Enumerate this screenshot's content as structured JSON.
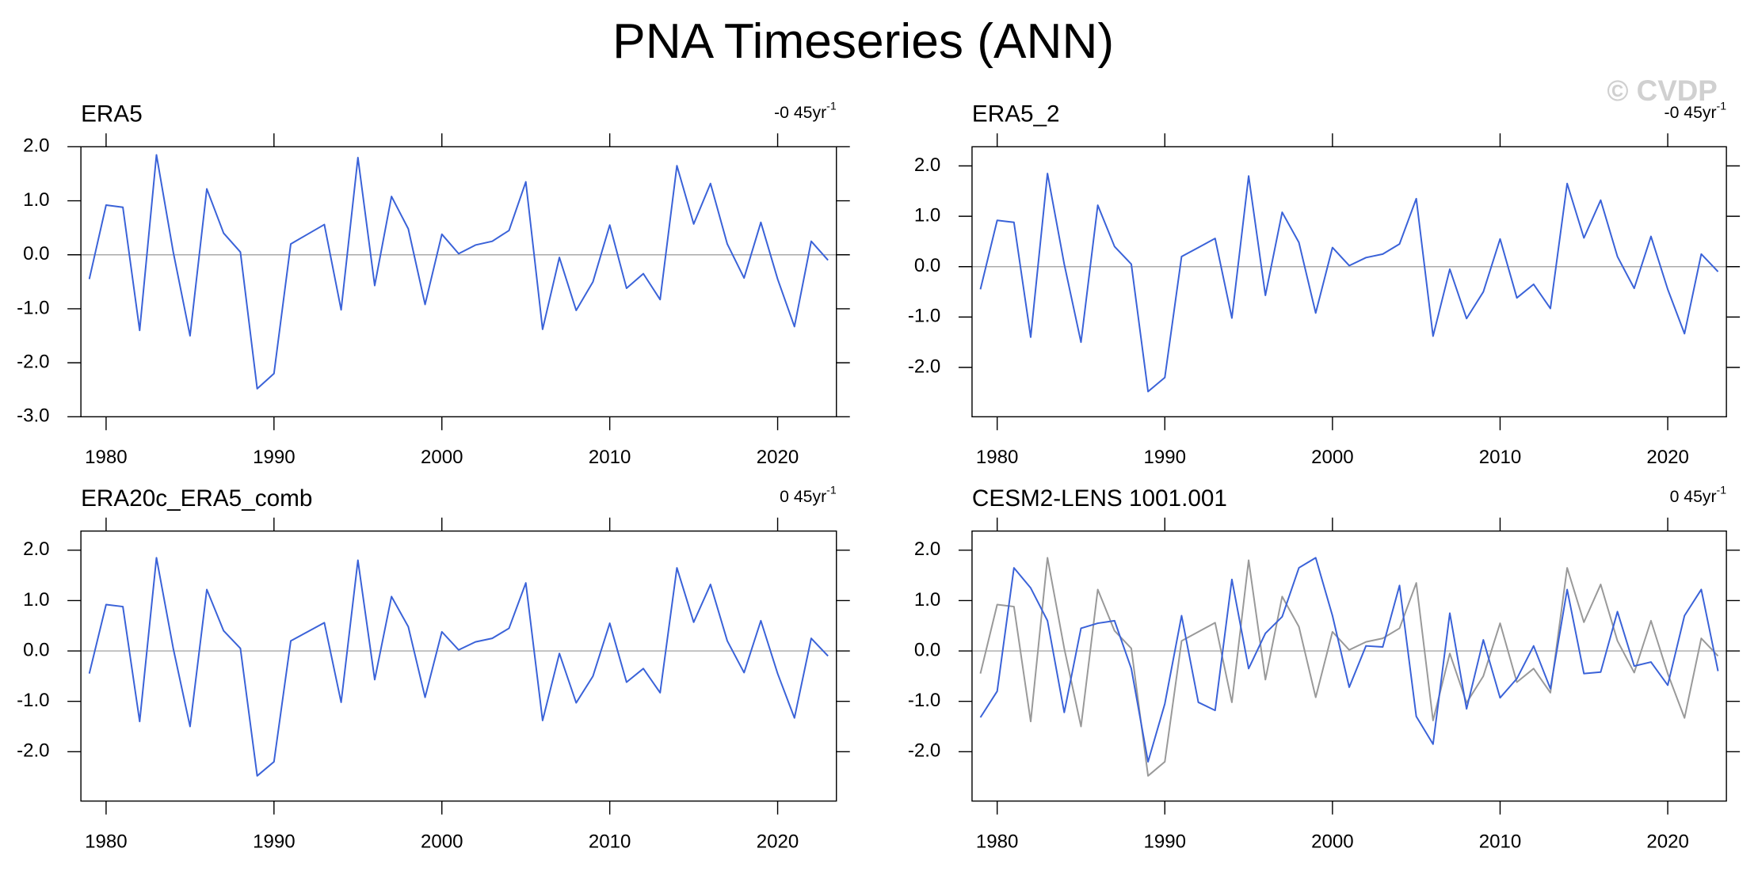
{
  "title": "PNA Timeseries (ANN)",
  "watermark": "© CVDP",
  "chart_data": [
    {
      "type": "line",
      "title": "ERA5",
      "trend": {
        "text": "-0 45yr",
        "superscript": "-1"
      },
      "x": [
        1979,
        1980,
        1981,
        1982,
        1983,
        1984,
        1985,
        1986,
        1987,
        1988,
        1989,
        1990,
        1991,
        1992,
        1993,
        1994,
        1995,
        1996,
        1997,
        1998,
        1999,
        2000,
        2001,
        2002,
        2003,
        2004,
        2005,
        2006,
        2007,
        2008,
        2009,
        2010,
        2011,
        2012,
        2013,
        2014,
        2015,
        2016,
        2017,
        2018,
        2019,
        2020,
        2021,
        2022,
        2023
      ],
      "series": [
        {
          "color": "#3a62d8",
          "values": [
            -0.45,
            0.92,
            0.88,
            -1.4,
            1.85,
            0.05,
            -1.5,
            1.22,
            0.4,
            0.05,
            -2.48,
            -2.2,
            0.2,
            0.38,
            0.56,
            -1.02,
            1.8,
            -0.57,
            1.08,
            0.48,
            -0.92,
            0.38,
            0.02,
            0.18,
            0.25,
            0.45,
            1.35,
            -1.38,
            -0.05,
            -1.03,
            -0.5,
            0.55,
            -0.62,
            -0.35,
            -0.83,
            1.65,
            0.57,
            1.32,
            0.2,
            -0.43,
            0.6,
            -0.45,
            -1.33,
            0.25,
            -0.1
          ]
        }
      ],
      "xlim": [
        1978.5,
        2023.5
      ],
      "xticks": [
        1980,
        1990,
        2000,
        2010,
        2020
      ],
      "ylim": [
        -3,
        2
      ],
      "yticks": [
        {
          "value": -3,
          "label": "-3.0"
        },
        {
          "value": -2,
          "label": "-2.0"
        },
        {
          "value": -1,
          "label": "-1.0"
        },
        {
          "value": 0,
          "label": "0.0"
        },
        {
          "value": 1,
          "label": "1.0"
        },
        {
          "value": 2,
          "label": "2.0"
        }
      ],
      "zero_line": true
    },
    {
      "type": "line",
      "title": "ERA5_2",
      "trend": {
        "text": "-0 45yr",
        "superscript": "-1"
      },
      "x": [
        1979,
        1980,
        1981,
        1982,
        1983,
        1984,
        1985,
        1986,
        1987,
        1988,
        1989,
        1990,
        1991,
        1992,
        1993,
        1994,
        1995,
        1996,
        1997,
        1998,
        1999,
        2000,
        2001,
        2002,
        2003,
        2004,
        2005,
        2006,
        2007,
        2008,
        2009,
        2010,
        2011,
        2012,
        2013,
        2014,
        2015,
        2016,
        2017,
        2018,
        2019,
        2020,
        2021,
        2022,
        2023
      ],
      "series": [
        {
          "color": "#3a62d8",
          "values": [
            -0.45,
            0.92,
            0.88,
            -1.4,
            1.85,
            0.05,
            -1.5,
            1.22,
            0.4,
            0.05,
            -2.48,
            -2.2,
            0.2,
            0.38,
            0.56,
            -1.02,
            1.8,
            -0.57,
            1.08,
            0.48,
            -0.92,
            0.38,
            0.02,
            0.18,
            0.25,
            0.45,
            1.35,
            -1.38,
            -0.05,
            -1.03,
            -0.5,
            0.55,
            -0.62,
            -0.35,
            -0.83,
            1.65,
            0.57,
            1.32,
            0.2,
            -0.43,
            0.6,
            -0.45,
            -1.33,
            0.25,
            -0.1
          ]
        }
      ],
      "xlim": [
        1978.5,
        2023.5
      ],
      "xticks": [
        1980,
        1990,
        2000,
        2010,
        2020
      ],
      "ylim": [
        -2.98,
        2.38
      ],
      "yticks": [
        {
          "value": -2,
          "label": "-2.0"
        },
        {
          "value": -1,
          "label": "-1.0"
        },
        {
          "value": 0,
          "label": "0.0"
        },
        {
          "value": 1,
          "label": "1.0"
        },
        {
          "value": 2,
          "label": "2.0"
        }
      ],
      "zero_line": true
    },
    {
      "type": "line",
      "title": "ERA20c_ERA5_comb",
      "trend": {
        "text": "0 45yr",
        "superscript": "-1"
      },
      "x": [
        1979,
        1980,
        1981,
        1982,
        1983,
        1984,
        1985,
        1986,
        1987,
        1988,
        1989,
        1990,
        1991,
        1992,
        1993,
        1994,
        1995,
        1996,
        1997,
        1998,
        1999,
        2000,
        2001,
        2002,
        2003,
        2004,
        2005,
        2006,
        2007,
        2008,
        2009,
        2010,
        2011,
        2012,
        2013,
        2014,
        2015,
        2016,
        2017,
        2018,
        2019,
        2020,
        2021,
        2022,
        2023
      ],
      "series": [
        {
          "color": "#3a62d8",
          "values": [
            -0.45,
            0.92,
            0.88,
            -1.4,
            1.85,
            0.05,
            -1.5,
            1.22,
            0.4,
            0.05,
            -2.48,
            -2.2,
            0.2,
            0.38,
            0.56,
            -1.02,
            1.8,
            -0.57,
            1.08,
            0.48,
            -0.92,
            0.38,
            0.02,
            0.18,
            0.25,
            0.45,
            1.35,
            -1.38,
            -0.05,
            -1.03,
            -0.5,
            0.55,
            -0.62,
            -0.35,
            -0.83,
            1.65,
            0.57,
            1.32,
            0.2,
            -0.43,
            0.6,
            -0.45,
            -1.33,
            0.25,
            -0.1
          ]
        }
      ],
      "xlim": [
        1978.5,
        2023.5
      ],
      "xticks": [
        1980,
        1990,
        2000,
        2010,
        2020
      ],
      "ylim": [
        -2.98,
        2.38
      ],
      "yticks": [
        {
          "value": -2,
          "label": "-2.0"
        },
        {
          "value": -1,
          "label": "-1.0"
        },
        {
          "value": 0,
          "label": "0.0"
        },
        {
          "value": 1,
          "label": "1.0"
        },
        {
          "value": 2,
          "label": "2.0"
        }
      ],
      "zero_line": true
    },
    {
      "type": "line",
      "title": "CESM2-LENS 1001.001",
      "trend": {
        "text": "0 45yr",
        "superscript": "-1"
      },
      "x": [
        1979,
        1980,
        1981,
        1982,
        1983,
        1984,
        1985,
        1986,
        1987,
        1988,
        1989,
        1990,
        1991,
        1992,
        1993,
        1994,
        1995,
        1996,
        1997,
        1998,
        1999,
        2000,
        2001,
        2002,
        2003,
        2004,
        2005,
        2006,
        2007,
        2008,
        2009,
        2010,
        2011,
        2012,
        2013,
        2014,
        2015,
        2016,
        2017,
        2018,
        2019,
        2020,
        2021,
        2022,
        2023
      ],
      "series": [
        {
          "color": "#999999",
          "values": [
            -0.45,
            0.92,
            0.88,
            -1.4,
            1.85,
            0.05,
            -1.5,
            1.22,
            0.4,
            0.05,
            -2.48,
            -2.2,
            0.2,
            0.38,
            0.56,
            -1.02,
            1.8,
            -0.57,
            1.08,
            0.48,
            -0.92,
            0.38,
            0.02,
            0.18,
            0.25,
            0.45,
            1.35,
            -1.38,
            -0.05,
            -1.03,
            -0.5,
            0.55,
            -0.62,
            -0.35,
            -0.83,
            1.65,
            0.57,
            1.32,
            0.2,
            -0.43,
            0.6,
            -0.45,
            -1.33,
            0.25,
            -0.1
          ]
        },
        {
          "color": "#3a62d8",
          "values": [
            -1.32,
            -0.8,
            1.65,
            1.25,
            0.6,
            -1.22,
            0.45,
            0.55,
            0.6,
            -0.35,
            -2.2,
            -1.05,
            0.7,
            -1.02,
            -1.18,
            1.42,
            -0.35,
            0.35,
            0.68,
            1.65,
            1.85,
            0.7,
            -0.72,
            0.1,
            0.08,
            1.3,
            -1.3,
            -1.85,
            0.75,
            -1.15,
            0.22,
            -0.93,
            -0.55,
            0.1,
            -0.75,
            1.22,
            -0.45,
            -0.42,
            0.78,
            -0.3,
            -0.22,
            -0.68,
            0.7,
            1.22,
            -0.4
          ]
        }
      ],
      "xlim": [
        1978.5,
        2023.5
      ],
      "xticks": [
        1980,
        1990,
        2000,
        2010,
        2020
      ],
      "ylim": [
        -2.98,
        2.38
      ],
      "yticks": [
        {
          "value": -2,
          "label": "-2.0"
        },
        {
          "value": -1,
          "label": "-1.0"
        },
        {
          "value": 0,
          "label": "0.0"
        },
        {
          "value": 1,
          "label": "1.0"
        },
        {
          "value": 2,
          "label": "2.0"
        }
      ],
      "zero_line": true
    }
  ]
}
